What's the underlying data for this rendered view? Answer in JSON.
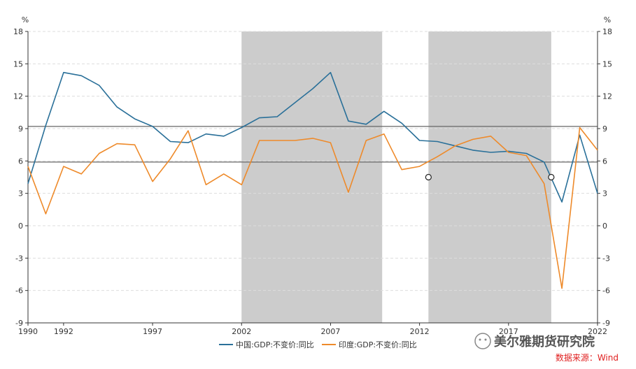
{
  "chart_data": {
    "type": "line",
    "x": [
      1990,
      1991,
      1992,
      1993,
      1994,
      1995,
      1996,
      1997,
      1998,
      1999,
      2000,
      2001,
      2002,
      2003,
      2004,
      2005,
      2006,
      2007,
      2008,
      2009,
      2010,
      2011,
      2012,
      2013,
      2014,
      2015,
      2016,
      2017,
      2018,
      2019,
      2020,
      2021,
      2022
    ],
    "series": [
      {
        "name": "中国:GDP:不变价:同比",
        "color": "#2a7099",
        "values": [
          3.9,
          9.3,
          14.2,
          13.9,
          13.0,
          11.0,
          9.9,
          9.2,
          7.8,
          7.7,
          8.5,
          8.3,
          9.1,
          10.0,
          10.1,
          11.4,
          12.7,
          14.2,
          9.7,
          9.4,
          10.6,
          9.5,
          7.9,
          7.8,
          7.4,
          7.0,
          6.8,
          6.9,
          6.7,
          5.9,
          2.2,
          8.4,
          3.0
        ]
      },
      {
        "name": "印度:GDP:不变价:同比",
        "color": "#ee8a2a",
        "values": [
          5.5,
          1.1,
          5.5,
          4.8,
          6.7,
          7.6,
          7.5,
          4.1,
          6.2,
          8.8,
          3.8,
          4.8,
          3.8,
          7.9,
          7.9,
          7.9,
          8.1,
          7.7,
          3.1,
          7.9,
          8.5,
          5.2,
          5.5,
          6.4,
          7.4,
          8.0,
          8.3,
          6.8,
          6.5,
          3.9,
          -5.8,
          9.1,
          7.0
        ]
      }
    ],
    "ylim": [
      -9,
      18
    ],
    "yticks": [
      -9,
      -6,
      -3,
      0,
      3,
      6,
      9,
      12,
      15,
      18
    ],
    "ytick_labels": [
      "-9",
      "-6",
      "-3",
      "0",
      "3",
      "6",
      "9",
      "12",
      "15",
      "18"
    ],
    "xlim": [
      1990,
      2022
    ],
    "xticks": [
      1990,
      1992,
      1997,
      2002,
      2007,
      2012,
      2017,
      2022
    ],
    "xtick_labels": [
      "1990",
      "1992",
      "1997",
      "2002",
      "2007",
      "2012",
      "2017",
      "2022"
    ],
    "ylabel_left": "%",
    "ylabel_right": "%",
    "shaded_ranges": [
      [
        2002,
        2009.9
      ],
      [
        2012.5,
        2019.4
      ]
    ],
    "shade_color": "#cccccc",
    "reference_lines": [
      9.2,
      5.9
    ],
    "markers": [
      {
        "x": 2012.5,
        "y": 4.5
      },
      {
        "x": 2019.4,
        "y": 4.5
      }
    ],
    "legend_position": "bottom-center"
  },
  "watermark_text": "美尔雅期货研究院",
  "source_text": "数据来源：Wind"
}
